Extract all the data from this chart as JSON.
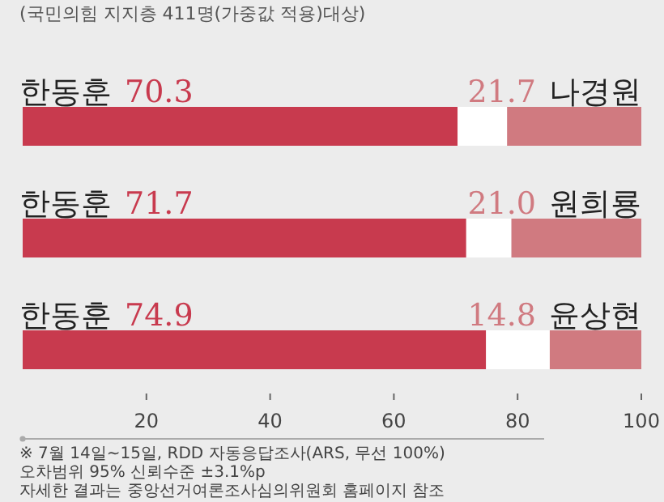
{
  "chart_data": {
    "type": "bar",
    "orientation": "horizontal",
    "stacked": true,
    "subtitle": "(국민의힘 지지층 411명(가중값 적용)대상)",
    "categories": [
      "나경원",
      "원희룡",
      "윤상현"
    ],
    "series": [
      {
        "name": "한동훈",
        "color": "#c83a4e",
        "values": [
          70.3,
          71.7,
          74.9
        ],
        "value_labels": [
          "70.3",
          "71.7",
          "74.9"
        ]
      },
      {
        "color": "#ffffff",
        "values": [
          8.0,
          7.3,
          10.3
        ]
      },
      {
        "color": "#d07a80",
        "values": [
          21.7,
          21.0,
          14.8
        ],
        "value_labels": [
          "21.7",
          "21.0",
          "14.8"
        ]
      }
    ],
    "xlim": [
      0,
      100
    ],
    "xticks": [
      20,
      40,
      60,
      80,
      100
    ],
    "annotations": [
      "※ 7월 14일~15일, RDD 자동응답조사(ARS, 무선 100%)",
      "오차범위 95% 신뢰수준 ±3.1%p",
      "자세한 결과는 중앙선거여론조사심의위원회 홈페이지 참조"
    ]
  }
}
